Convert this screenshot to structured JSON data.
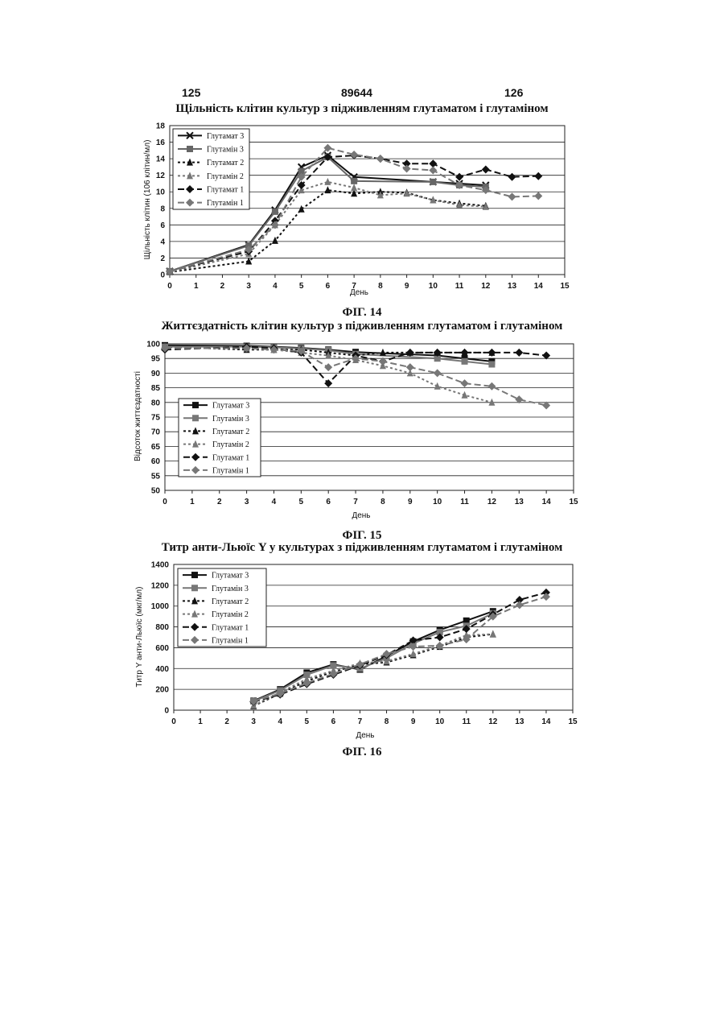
{
  "header": {
    "left": "125",
    "center": "89644",
    "right": "126"
  },
  "chart_data": [
    {
      "type": "line",
      "title": "Щільність клітин культур з підживленням глутаматом і глутаміном",
      "figure_label": "ФІГ. 14",
      "xlabel": "День",
      "ylabel": "Щільність клітин (106 клітин/мл)",
      "xlim": [
        0,
        15
      ],
      "ylim": [
        0,
        18
      ],
      "xticks": [
        0,
        1,
        2,
        3,
        4,
        5,
        6,
        7,
        8,
        9,
        10,
        11,
        12,
        13,
        14,
        15
      ],
      "yticks": [
        0,
        2,
        4,
        6,
        8,
        10,
        12,
        14,
        16,
        18
      ],
      "grid": true,
      "legend": "top-left",
      "series": [
        {
          "name": "Глутамат 3",
          "marker": "x",
          "dash": "solid",
          "color": "#111111",
          "x": [
            0,
            3,
            4,
            5,
            6,
            7,
            10,
            11,
            12
          ],
          "y": [
            0.4,
            3.6,
            7.8,
            13.0,
            14.4,
            11.8,
            11.2,
            11.0,
            10.8
          ]
        },
        {
          "name": "Глутамін 3",
          "marker": "square",
          "dash": "solid",
          "color": "#666666",
          "x": [
            0,
            3,
            4,
            5,
            6,
            7,
            10,
            11,
            12
          ],
          "y": [
            0.4,
            3.5,
            7.6,
            12.5,
            14.2,
            11.3,
            11.2,
            10.8,
            10.6
          ]
        },
        {
          "name": "Глутамат 2",
          "marker": "triangle",
          "dash": "short",
          "color": "#111111",
          "x": [
            0,
            3,
            4,
            5,
            6,
            7,
            8,
            9,
            10,
            11,
            12
          ],
          "y": [
            0.3,
            1.6,
            4.1,
            7.9,
            10.2,
            9.8,
            10.0,
            9.9,
            9.0,
            8.6,
            8.3
          ]
        },
        {
          "name": "Глутамін 2",
          "marker": "triangle",
          "dash": "short",
          "color": "#777777",
          "x": [
            0,
            3,
            4,
            5,
            6,
            7,
            8,
            9,
            10,
            11,
            12
          ],
          "y": [
            0.3,
            2.5,
            6.0,
            10.2,
            11.2,
            10.5,
            9.6,
            9.8,
            9.0,
            8.4,
            8.2
          ]
        },
        {
          "name": "Глутамат 1",
          "marker": "diamond",
          "dash": "long",
          "color": "#111111",
          "x": [
            0,
            3,
            4,
            5,
            6,
            7,
            8,
            9,
            10,
            11,
            12,
            13,
            14
          ],
          "y": [
            0.4,
            2.8,
            6.5,
            10.8,
            14.2,
            14.4,
            14.0,
            13.4,
            13.4,
            11.8,
            12.7,
            11.8,
            11.9
          ]
        },
        {
          "name": "Глутамін 1",
          "marker": "diamond",
          "dash": "long",
          "color": "#777777",
          "x": [
            0,
            3,
            4,
            5,
            6,
            7,
            8,
            9,
            10,
            11,
            12,
            13,
            14
          ],
          "y": [
            0.4,
            3.0,
            6.0,
            11.8,
            15.3,
            14.5,
            14.0,
            12.8,
            12.6,
            10.8,
            10.2,
            9.4,
            9.5
          ]
        }
      ]
    },
    {
      "type": "line",
      "title": "Життєздатність клітин культур з підживленням глутаматом і глутаміном",
      "figure_label": "ФІГ. 15",
      "xlabel": "День",
      "ylabel": "Відсоток життєздатності",
      "xlim": [
        0,
        15
      ],
      "ylim": [
        50,
        100
      ],
      "xticks": [
        0,
        1,
        2,
        3,
        4,
        5,
        6,
        7,
        8,
        9,
        10,
        11,
        12,
        13,
        14,
        15
      ],
      "yticks": [
        50,
        55,
        60,
        65,
        70,
        75,
        80,
        85,
        90,
        95,
        100
      ],
      "grid": true,
      "legend": "bottom-left",
      "series": [
        {
          "name": "Глутамат 3",
          "marker": "square",
          "dash": "solid",
          "color": "#111111",
          "x": [
            0,
            3,
            4,
            5,
            6,
            7,
            10,
            11,
            12
          ],
          "y": [
            99.5,
            99.3,
            99.0,
            98.6,
            98.0,
            97.2,
            96.0,
            95.0,
            94.0
          ]
        },
        {
          "name": "Глутамін 3",
          "marker": "square",
          "dash": "solid",
          "color": "#777777",
          "x": [
            0,
            3,
            4,
            5,
            6,
            7,
            10,
            11,
            12
          ],
          "y": [
            99.0,
            99.0,
            98.8,
            98.4,
            97.8,
            96.5,
            95.0,
            94.0,
            93.0
          ]
        },
        {
          "name": "Глутамат 2",
          "marker": "triangle",
          "dash": "short",
          "color": "#111111",
          "x": [
            0,
            3,
            4,
            5,
            6,
            7,
            8,
            9,
            10,
            11,
            12
          ],
          "y": [
            99.0,
            98.0,
            98.0,
            98.0,
            97.0,
            96.0,
            97.0,
            97.0,
            97.0,
            97.0,
            97.0
          ]
        },
        {
          "name": "Глутамін 2",
          "marker": "triangle",
          "dash": "short",
          "color": "#777777",
          "x": [
            0,
            3,
            4,
            5,
            6,
            7,
            8,
            9,
            10,
            11,
            12
          ],
          "y": [
            99.0,
            98.5,
            98.0,
            97.0,
            96.0,
            94.5,
            92.5,
            90.0,
            85.5,
            82.5,
            80.0
          ]
        },
        {
          "name": "Глутамат 1",
          "marker": "diamond",
          "dash": "long",
          "color": "#111111",
          "x": [
            0,
            3,
            4,
            5,
            6,
            7,
            8,
            9,
            10,
            11,
            12,
            13,
            14
          ],
          "y": [
            98.0,
            99.0,
            98.5,
            97.0,
            86.5,
            96.0,
            94.0,
            97.0,
            97.0,
            97.0,
            97.0,
            97.0,
            96.0
          ]
        },
        {
          "name": "Глутамін 1",
          "marker": "diamond",
          "dash": "long",
          "color": "#777777",
          "x": [
            0,
            3,
            4,
            5,
            6,
            7,
            8,
            9,
            10,
            11,
            12,
            13,
            14
          ],
          "y": [
            98.5,
            98.5,
            98.0,
            97.5,
            92.0,
            95.0,
            94.0,
            92.0,
            90.0,
            86.5,
            85.5,
            81.0,
            79.0
          ]
        }
      ]
    },
    {
      "type": "line",
      "title": "Титр анти-Льюїс Y у культурах з підживленням глутаматом і глутаміном",
      "figure_label": "ФІГ. 16",
      "xlabel": "День",
      "ylabel": "Титр Y анти-Льюїс (мкг/мл)",
      "xlim": [
        0,
        15
      ],
      "ylim": [
        0,
        1400
      ],
      "xticks": [
        0,
        1,
        2,
        3,
        4,
        5,
        6,
        7,
        8,
        9,
        10,
        11,
        12,
        13,
        14,
        15
      ],
      "yticks": [
        0,
        200,
        400,
        600,
        800,
        1000,
        1200,
        1400
      ],
      "grid": true,
      "legend": "top-left",
      "series": [
        {
          "name": "Глутамат 3",
          "marker": "square",
          "dash": "solid",
          "color": "#111111",
          "x": [
            3,
            4,
            5,
            6,
            7,
            8,
            9,
            10,
            11,
            12
          ],
          "y": [
            90,
            200,
            360,
            440,
            390,
            520,
            660,
            770,
            860,
            950
          ]
        },
        {
          "name": "Глутамін 3",
          "marker": "square",
          "dash": "solid",
          "color": "#777777",
          "x": [
            3,
            4,
            5,
            6,
            7,
            8,
            9,
            10,
            11,
            12
          ],
          "y": [
            85,
            190,
            340,
            430,
            400,
            500,
            640,
            750,
            810,
            930
          ]
        },
        {
          "name": "Глутамат 2",
          "marker": "triangle",
          "dash": "short",
          "color": "#111111",
          "x": [
            3,
            4,
            5,
            6,
            7,
            8,
            9,
            10,
            11,
            12
          ],
          "y": [
            40,
            160,
            280,
            370,
            440,
            460,
            530,
            610,
            700,
            730
          ]
        },
        {
          "name": "Глутамін 2",
          "marker": "triangle",
          "dash": "short",
          "color": "#777777",
          "x": [
            3,
            4,
            5,
            6,
            7,
            8,
            9,
            10,
            11,
            12
          ],
          "y": [
            45,
            170,
            300,
            380,
            450,
            470,
            540,
            620,
            720,
            730
          ]
        },
        {
          "name": "Глутамат 1",
          "marker": "diamond",
          "dash": "long",
          "color": "#111111",
          "x": [
            3,
            4,
            5,
            6,
            7,
            8,
            9,
            10,
            11,
            12,
            13,
            14
          ],
          "y": [
            80,
            150,
            250,
            340,
            430,
            530,
            670,
            700,
            780,
            920,
            1060,
            1130
          ]
        },
        {
          "name": "Глутамін 1",
          "marker": "diamond",
          "dash": "long",
          "color": "#777777",
          "x": [
            3,
            4,
            5,
            6,
            7,
            8,
            9,
            10,
            11,
            12,
            13,
            14
          ],
          "y": [
            85,
            160,
            260,
            350,
            440,
            540,
            610,
            620,
            680,
            900,
            1010,
            1090
          ]
        }
      ]
    }
  ]
}
